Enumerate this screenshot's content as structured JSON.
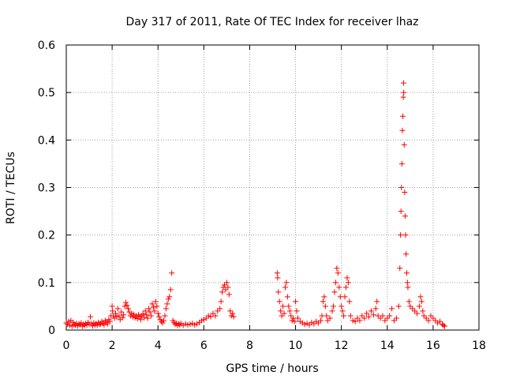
{
  "chart_data": {
    "type": "scatter",
    "title": "Day 317 of 2011, Rate Of TEC Index for receiver lhaz",
    "xlabel": "GPS time / hours",
    "ylabel": "ROTI / TECUs",
    "xlim": [
      0,
      18
    ],
    "ylim": [
      0,
      0.6
    ],
    "xticks": [
      0,
      2,
      4,
      6,
      8,
      10,
      12,
      14,
      16,
      18
    ],
    "yticks": [
      0,
      0.1,
      0.2,
      0.3,
      0.4,
      0.5,
      0.6
    ],
    "xtick_labels": [
      "0",
      "2",
      "4",
      "6",
      "8",
      "10",
      "12",
      "14",
      "16",
      "18"
    ],
    "ytick_labels": [
      "0",
      "0.1",
      "0.2",
      "0.3",
      "0.4",
      "0.5",
      "0.6"
    ],
    "grid": true,
    "marker": "plus",
    "color": "#ff0000",
    "series": [
      {
        "points": [
          [
            0.0,
            0.015
          ],
          [
            0.05,
            0.012
          ],
          [
            0.1,
            0.018
          ],
          [
            0.15,
            0.01
          ],
          [
            0.2,
            0.02
          ],
          [
            0.25,
            0.008
          ],
          [
            0.3,
            0.016
          ],
          [
            0.35,
            0.012
          ],
          [
            0.4,
            0.01
          ],
          [
            0.45,
            0.014
          ],
          [
            0.5,
            0.009
          ],
          [
            0.55,
            0.013
          ],
          [
            0.6,
            0.011
          ],
          [
            0.65,
            0.015
          ],
          [
            0.7,
            0.008
          ],
          [
            0.75,
            0.012
          ],
          [
            0.8,
            0.01
          ],
          [
            0.85,
            0.014
          ],
          [
            0.9,
            0.011
          ],
          [
            0.95,
            0.016
          ],
          [
            1.0,
            0.012
          ],
          [
            1.05,
            0.028
          ],
          [
            1.1,
            0.013
          ],
          [
            1.15,
            0.009
          ],
          [
            1.2,
            0.015
          ],
          [
            1.25,
            0.011
          ],
          [
            1.3,
            0.014
          ],
          [
            1.35,
            0.01
          ],
          [
            1.4,
            0.016
          ],
          [
            1.45,
            0.012
          ],
          [
            1.5,
            0.013
          ],
          [
            1.55,
            0.018
          ],
          [
            1.6,
            0.014
          ],
          [
            1.65,
            0.011
          ],
          [
            1.7,
            0.02
          ],
          [
            1.75,
            0.016
          ],
          [
            1.8,
            0.013
          ],
          [
            1.85,
            0.022
          ],
          [
            1.9,
            0.018
          ],
          [
            1.95,
            0.03
          ],
          [
            2.0,
            0.05
          ],
          [
            2.02,
            0.04
          ],
          [
            2.05,
            0.03
          ],
          [
            2.1,
            0.025
          ],
          [
            2.15,
            0.035
          ],
          [
            2.2,
            0.028
          ],
          [
            2.25,
            0.045
          ],
          [
            2.3,
            0.03
          ],
          [
            2.35,
            0.022
          ],
          [
            2.4,
            0.038
          ],
          [
            2.45,
            0.026
          ],
          [
            2.5,
            0.032
          ],
          [
            2.55,
            0.05
          ],
          [
            2.6,
            0.058
          ],
          [
            2.65,
            0.052
          ],
          [
            2.7,
            0.045
          ],
          [
            2.75,
            0.038
          ],
          [
            2.8,
            0.03
          ],
          [
            2.85,
            0.035
          ],
          [
            2.9,
            0.028
          ],
          [
            2.95,
            0.033
          ],
          [
            3.0,
            0.026
          ],
          [
            3.05,
            0.03
          ],
          [
            3.1,
            0.024
          ],
          [
            3.15,
            0.032
          ],
          [
            3.2,
            0.028
          ],
          [
            3.25,
            0.022
          ],
          [
            3.3,
            0.03
          ],
          [
            3.35,
            0.034
          ],
          [
            3.4,
            0.026
          ],
          [
            3.45,
            0.04
          ],
          [
            3.5,
            0.032
          ],
          [
            3.55,
            0.025
          ],
          [
            3.6,
            0.045
          ],
          [
            3.65,
            0.038
          ],
          [
            3.7,
            0.03
          ],
          [
            3.75,
            0.055
          ],
          [
            3.8,
            0.048
          ],
          [
            3.85,
            0.04
          ],
          [
            3.9,
            0.06
          ],
          [
            3.95,
            0.05
          ],
          [
            4.0,
            0.035
          ],
          [
            4.05,
            0.028
          ],
          [
            4.1,
            0.022
          ],
          [
            4.15,
            0.018
          ],
          [
            4.2,
            0.015
          ],
          [
            4.25,
            0.02
          ],
          [
            4.3,
            0.03
          ],
          [
            4.35,
            0.045
          ],
          [
            4.4,
            0.055
          ],
          [
            4.45,
            0.065
          ],
          [
            4.5,
            0.07
          ],
          [
            4.55,
            0.085
          ],
          [
            4.6,
            0.12
          ],
          [
            4.65,
            0.02
          ],
          [
            4.7,
            0.016
          ],
          [
            4.75,
            0.012
          ],
          [
            4.8,
            0.014
          ],
          [
            4.85,
            0.01
          ],
          [
            4.9,
            0.013
          ],
          [
            4.95,
            0.011
          ],
          [
            5.0,
            0.014
          ],
          [
            5.1,
            0.01
          ],
          [
            5.2,
            0.013
          ],
          [
            5.3,
            0.011
          ],
          [
            5.4,
            0.012
          ],
          [
            5.5,
            0.014
          ],
          [
            5.6,
            0.011
          ],
          [
            5.7,
            0.013
          ],
          [
            5.8,
            0.016
          ],
          [
            5.9,
            0.02
          ],
          [
            6.0,
            0.022
          ],
          [
            6.1,
            0.025
          ],
          [
            6.2,
            0.03
          ],
          [
            6.3,
            0.028
          ],
          [
            6.4,
            0.035
          ],
          [
            6.5,
            0.03
          ],
          [
            6.6,
            0.04
          ],
          [
            6.7,
            0.045
          ],
          [
            6.75,
            0.06
          ],
          [
            6.8,
            0.08
          ],
          [
            6.85,
            0.09
          ],
          [
            6.9,
            0.095
          ],
          [
            6.95,
            0.085
          ],
          [
            7.0,
            0.1
          ],
          [
            7.05,
            0.09
          ],
          [
            7.1,
            0.075
          ],
          [
            7.15,
            0.04
          ],
          [
            7.2,
            0.03
          ],
          [
            7.25,
            0.035
          ],
          [
            7.3,
            0.028
          ],
          [
            9.2,
            0.12
          ],
          [
            9.22,
            0.11
          ],
          [
            9.25,
            0.08
          ],
          [
            9.3,
            0.06
          ],
          [
            9.35,
            0.04
          ],
          [
            9.4,
            0.03
          ],
          [
            9.45,
            0.05
          ],
          [
            9.5,
            0.035
          ],
          [
            9.55,
            0.09
          ],
          [
            9.6,
            0.1
          ],
          [
            9.65,
            0.07
          ],
          [
            9.7,
            0.05
          ],
          [
            9.75,
            0.04
          ],
          [
            9.8,
            0.03
          ],
          [
            9.85,
            0.02
          ],
          [
            9.9,
            0.025
          ],
          [
            9.95,
            0.018
          ],
          [
            10.0,
            0.06
          ],
          [
            10.05,
            0.04
          ],
          [
            10.1,
            0.025
          ],
          [
            10.2,
            0.018
          ],
          [
            10.3,
            0.015
          ],
          [
            10.4,
            0.012
          ],
          [
            10.5,
            0.014
          ],
          [
            10.6,
            0.011
          ],
          [
            10.7,
            0.016
          ],
          [
            10.8,
            0.013
          ],
          [
            10.9,
            0.018
          ],
          [
            11.0,
            0.015
          ],
          [
            11.1,
            0.02
          ],
          [
            11.15,
            0.03
          ],
          [
            11.2,
            0.06
          ],
          [
            11.25,
            0.07
          ],
          [
            11.3,
            0.05
          ],
          [
            11.35,
            0.03
          ],
          [
            11.4,
            0.02
          ],
          [
            11.5,
            0.025
          ],
          [
            11.6,
            0.04
          ],
          [
            11.65,
            0.05
          ],
          [
            11.7,
            0.08
          ],
          [
            11.75,
            0.1
          ],
          [
            11.8,
            0.13
          ],
          [
            11.85,
            0.12
          ],
          [
            11.9,
            0.09
          ],
          [
            11.95,
            0.07
          ],
          [
            12.0,
            0.05
          ],
          [
            12.05,
            0.04
          ],
          [
            12.1,
            0.03
          ],
          [
            12.15,
            0.07
          ],
          [
            12.2,
            0.09
          ],
          [
            12.25,
            0.11
          ],
          [
            12.3,
            0.1
          ],
          [
            12.35,
            0.06
          ],
          [
            12.4,
            0.03
          ],
          [
            12.5,
            0.02
          ],
          [
            12.6,
            0.018
          ],
          [
            12.7,
            0.025
          ],
          [
            12.8,
            0.02
          ],
          [
            12.9,
            0.03
          ],
          [
            13.0,
            0.025
          ],
          [
            13.1,
            0.035
          ],
          [
            13.2,
            0.028
          ],
          [
            13.3,
            0.04
          ],
          [
            13.4,
            0.032
          ],
          [
            13.5,
            0.045
          ],
          [
            13.55,
            0.06
          ],
          [
            13.6,
            0.03
          ],
          [
            13.7,
            0.025
          ],
          [
            13.8,
            0.03
          ],
          [
            13.9,
            0.02
          ],
          [
            14.0,
            0.025
          ],
          [
            14.1,
            0.03
          ],
          [
            14.2,
            0.045
          ],
          [
            14.3,
            0.02
          ],
          [
            14.4,
            0.025
          ],
          [
            14.5,
            0.05
          ],
          [
            14.55,
            0.13
          ],
          [
            14.58,
            0.2
          ],
          [
            14.6,
            0.25
          ],
          [
            14.62,
            0.3
          ],
          [
            14.64,
            0.35
          ],
          [
            14.66,
            0.42
          ],
          [
            14.68,
            0.45
          ],
          [
            14.7,
            0.49
          ],
          [
            14.71,
            0.52
          ],
          [
            14.72,
            0.5
          ],
          [
            14.74,
            0.39
          ],
          [
            14.76,
            0.29
          ],
          [
            14.78,
            0.24
          ],
          [
            14.8,
            0.2
          ],
          [
            14.82,
            0.16
          ],
          [
            14.85,
            0.12
          ],
          [
            14.88,
            0.1
          ],
          [
            14.9,
            0.09
          ],
          [
            14.95,
            0.06
          ],
          [
            15.0,
            0.05
          ],
          [
            15.1,
            0.045
          ],
          [
            15.2,
            0.04
          ],
          [
            15.3,
            0.035
          ],
          [
            15.4,
            0.05
          ],
          [
            15.45,
            0.07
          ],
          [
            15.5,
            0.06
          ],
          [
            15.55,
            0.04
          ],
          [
            15.6,
            0.03
          ],
          [
            15.7,
            0.025
          ],
          [
            15.8,
            0.02
          ],
          [
            15.9,
            0.03
          ],
          [
            16.0,
            0.025
          ],
          [
            16.1,
            0.02
          ],
          [
            16.2,
            0.015
          ],
          [
            16.3,
            0.018
          ],
          [
            16.4,
            0.012
          ],
          [
            16.45,
            0.01
          ],
          [
            16.5,
            0.008
          ]
        ]
      }
    ]
  }
}
